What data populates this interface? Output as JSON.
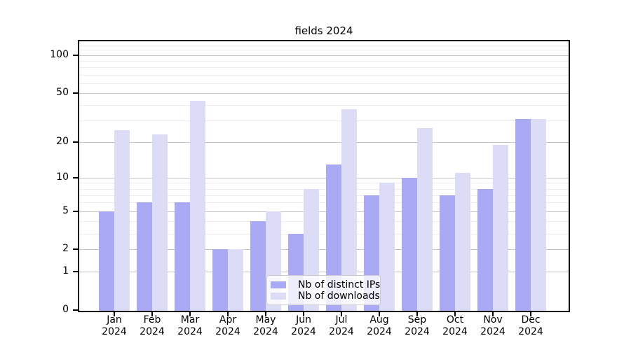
{
  "chart_data": {
    "type": "bar",
    "scale": "log1p",
    "title": "fields 2024",
    "months": [
      "Jan",
      "Feb",
      "Mar",
      "Apr",
      "May",
      "Jun",
      "Jul",
      "Aug",
      "Sep",
      "Oct",
      "Nov",
      "Dec"
    ],
    "year": "2024",
    "series": [
      {
        "name": "Nb of distinct IPs",
        "color": "#a9a9f4",
        "values": [
          5,
          6,
          6,
          2,
          4,
          3,
          13,
          7,
          10,
          7,
          8,
          31
        ]
      },
      {
        "name": "Nb of downloads",
        "color": "#dcdcf7",
        "values": [
          25,
          23,
          43,
          2,
          5,
          8,
          37,
          9,
          26,
          11,
          19,
          31
        ]
      }
    ],
    "ylim": [
      0,
      129
    ],
    "yticks": [
      0,
      1,
      2,
      5,
      10,
      20,
      50,
      100
    ],
    "yticks_minor": [
      3,
      4,
      6,
      7,
      8,
      9,
      30,
      40,
      60,
      70,
      80,
      90,
      110,
      120
    ],
    "xlabel": "",
    "ylabel": "",
    "grid": "on",
    "legend_position": "lower center",
    "colors": {
      "grid_major": "#c4c4c4",
      "grid_minor": "#ececec",
      "spine": "#000000",
      "legend_border": "#cccccc",
      "background": "#ffffff"
    }
  }
}
